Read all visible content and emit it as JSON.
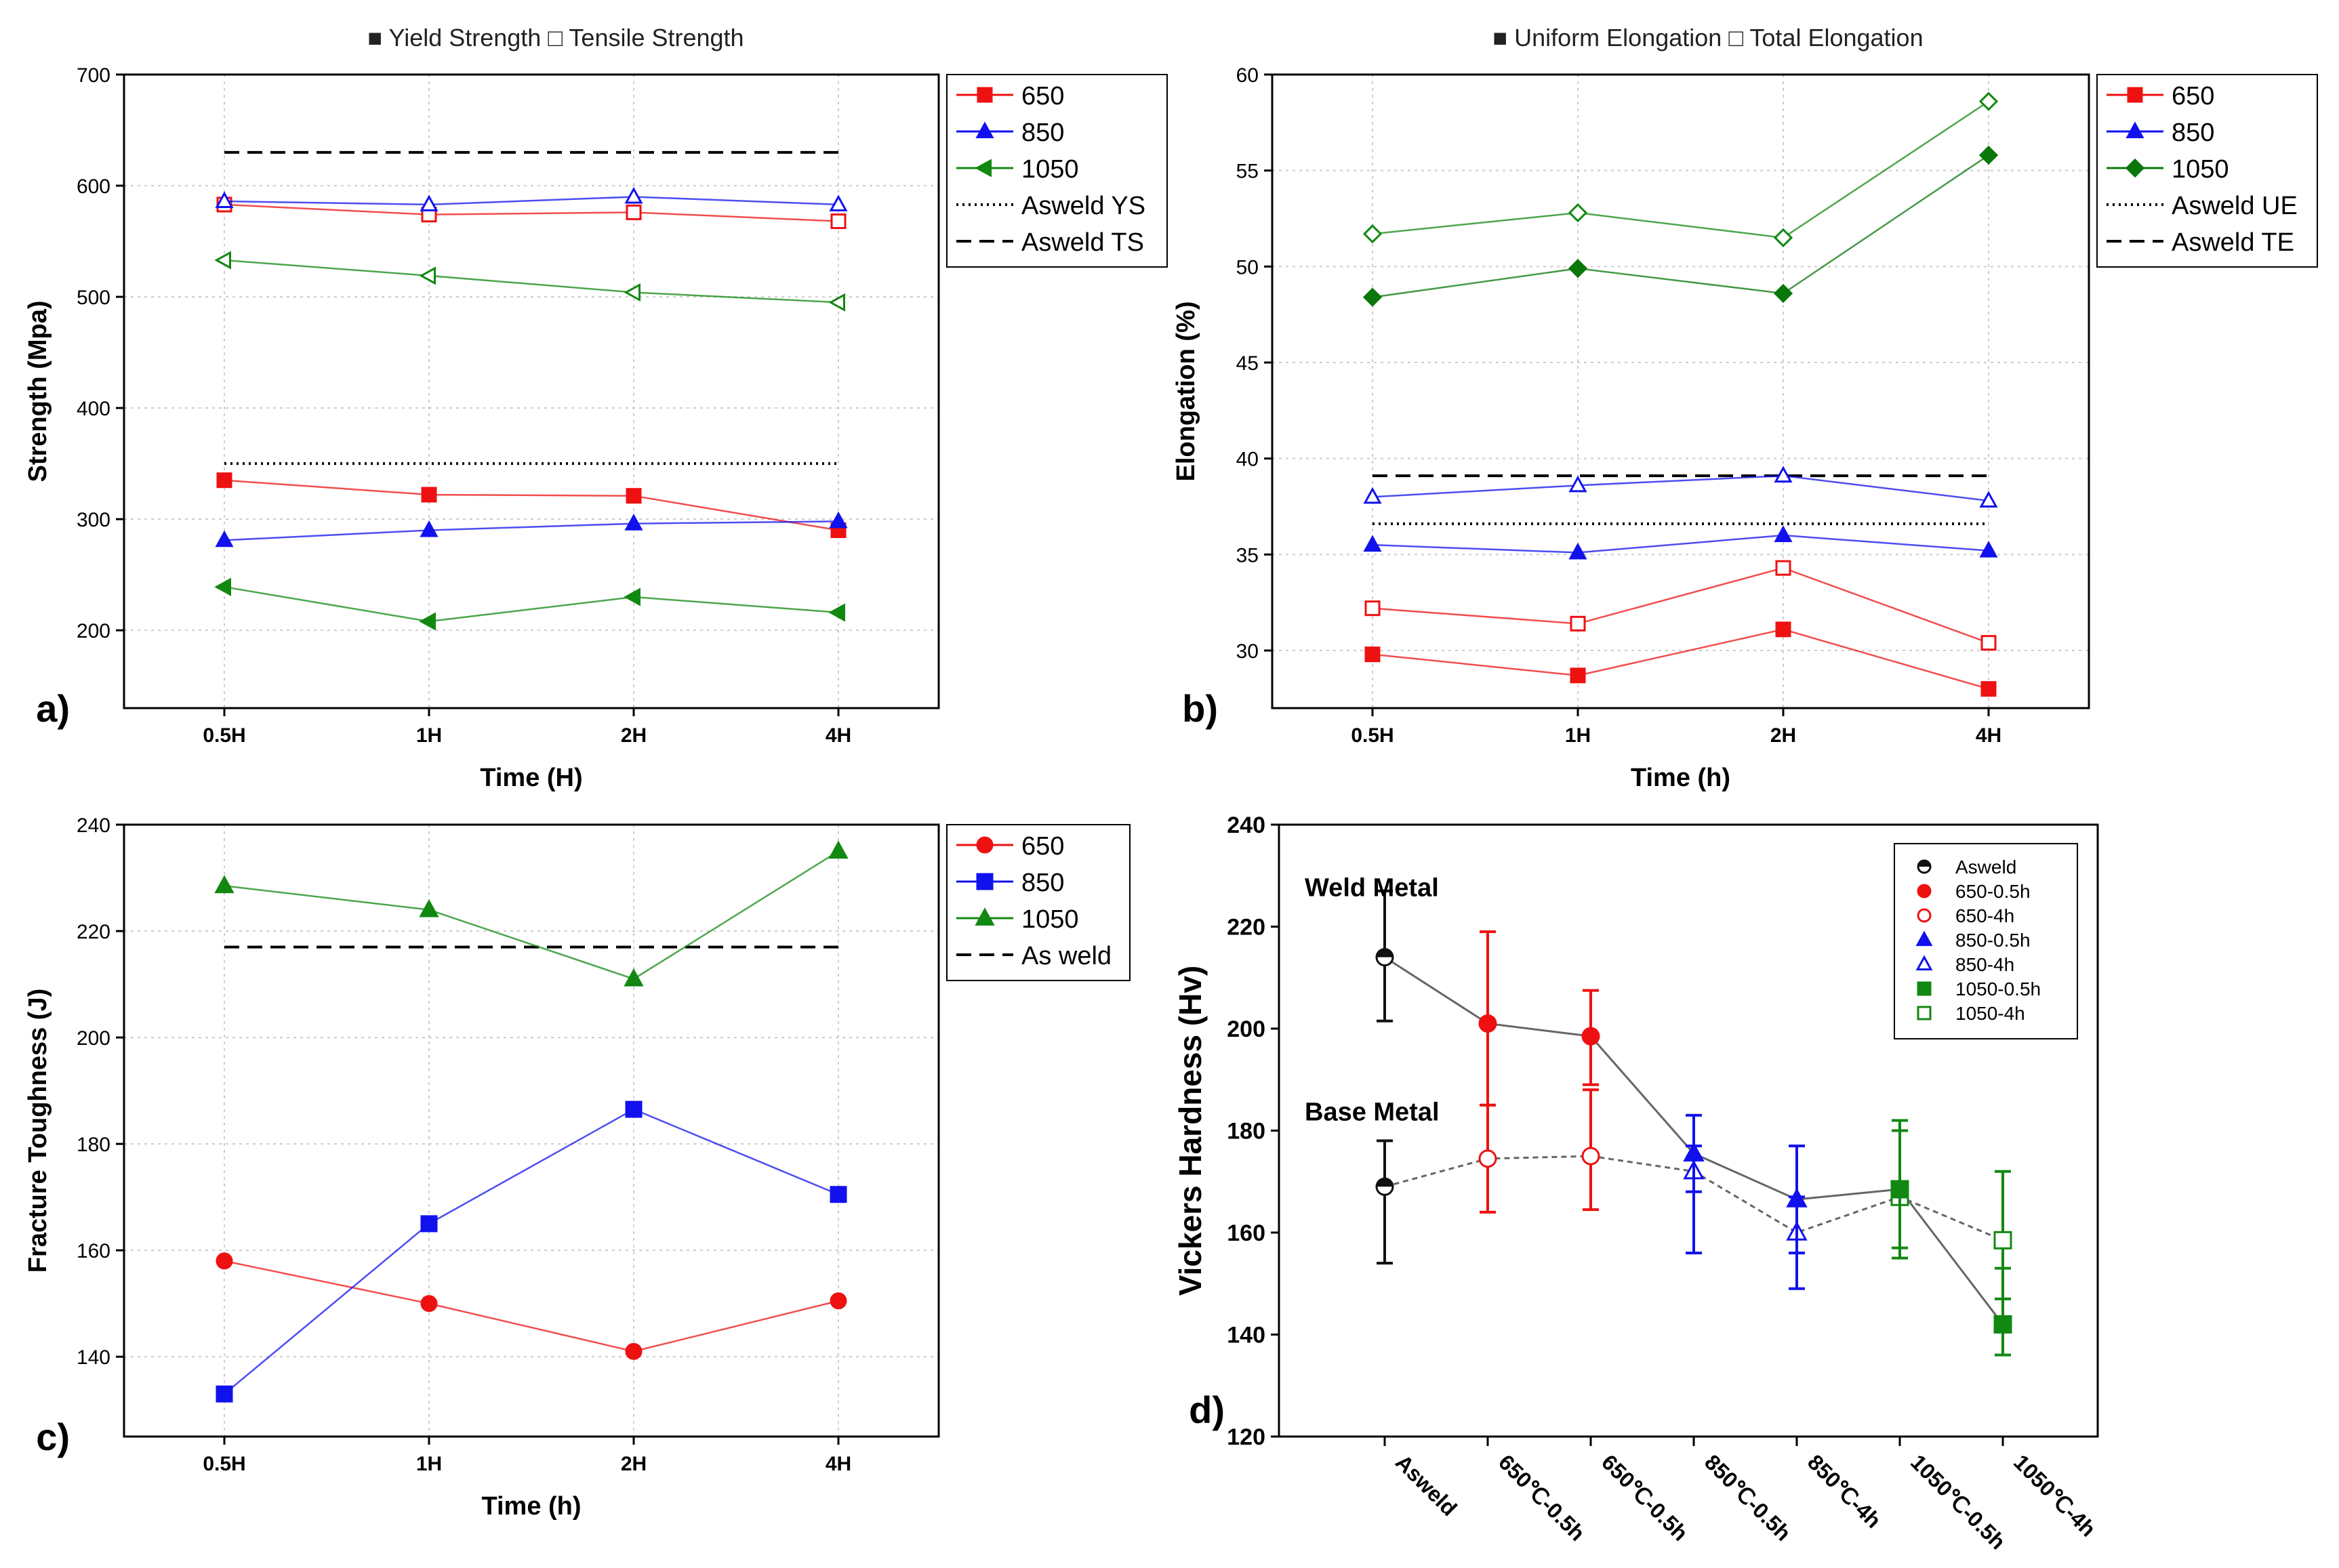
{
  "figure": {
    "panel_a_title": "■ Yield Strength □ Tensile Strength",
    "panel_b_title": "■ Uniform Elongation □ Total Elongation"
  },
  "chart_data": [
    {
      "panel": "a)",
      "type": "line",
      "xlabel": "Time (H)",
      "ylabel": "Strength (Mpa)",
      "categories": [
        "0.5H",
        "1H",
        "2H",
        "4H"
      ],
      "ylim": [
        130,
        700
      ],
      "yticks": [
        200,
        300,
        400,
        500,
        600,
        700
      ],
      "grid": true,
      "legend": [
        "650",
        "850",
        "1050",
        "Asweld YS",
        "Asweld TS"
      ],
      "legend_position": "top-right",
      "series": [
        {
          "name": "650",
          "color": "#ee1111",
          "marker": "square",
          "fill": "filled",
          "legend": true,
          "values": [
            335,
            322,
            321,
            290
          ]
        },
        {
          "name": "850",
          "color": "#1111ee",
          "marker": "triangle-up",
          "fill": "filled",
          "legend": true,
          "values": [
            281,
            290,
            296,
            298
          ]
        },
        {
          "name": "1050",
          "color": "#118811",
          "marker": "triangle-left",
          "fill": "filled",
          "legend": true,
          "values": [
            239,
            208,
            230,
            216
          ]
        },
        {
          "name": "650 TS",
          "color": "#ee1111",
          "marker": "square",
          "fill": "open",
          "legend": false,
          "values": [
            583,
            574,
            576,
            568
          ]
        },
        {
          "name": "850 TS",
          "color": "#1111ee",
          "marker": "triangle-up",
          "fill": "open",
          "legend": false,
          "values": [
            586,
            583,
            590,
            583
          ]
        },
        {
          "name": "1050 TS",
          "color": "#118811",
          "marker": "triangle-left",
          "fill": "open",
          "legend": false,
          "values": [
            533,
            519,
            504,
            495
          ]
        }
      ],
      "reference_lines": [
        {
          "name": "Asweld YS",
          "style": "dotted",
          "value": 350
        },
        {
          "name": "Asweld TS",
          "style": "dashed",
          "value": 630
        }
      ]
    },
    {
      "panel": "b)",
      "type": "line",
      "xlabel": "Time (h)",
      "ylabel": "Elongation (%)",
      "categories": [
        "0.5H",
        "1H",
        "2H",
        "4H"
      ],
      "ylim": [
        27,
        60
      ],
      "yticks": [
        30,
        35,
        40,
        45,
        50,
        55,
        60
      ],
      "grid": true,
      "legend": [
        "650",
        "850",
        "1050",
        "Asweld UE",
        "Asweld TE"
      ],
      "legend_position": "top-right",
      "series": [
        {
          "name": "650",
          "color": "#ee1111",
          "marker": "square",
          "fill": "filled",
          "legend": true,
          "values": [
            29.8,
            28.7,
            31.1,
            28.0
          ]
        },
        {
          "name": "850",
          "color": "#1111ee",
          "marker": "triangle-up",
          "fill": "filled",
          "legend": true,
          "values": [
            35.5,
            35.1,
            36.0,
            35.2
          ]
        },
        {
          "name": "1050",
          "color": "#0a770a",
          "marker": "diamond",
          "fill": "filled",
          "legend": true,
          "values": [
            48.4,
            49.9,
            48.6,
            55.8
          ]
        },
        {
          "name": "650 TE",
          "color": "#ee1111",
          "marker": "square",
          "fill": "open",
          "legend": false,
          "values": [
            32.2,
            31.4,
            34.3,
            30.4
          ]
        },
        {
          "name": "850 TE",
          "color": "#1111ee",
          "marker": "triangle-up",
          "fill": "open",
          "legend": false,
          "values": [
            38.0,
            38.6,
            39.1,
            37.8
          ]
        },
        {
          "name": "1050 TE",
          "color": "#118811",
          "marker": "diamond",
          "fill": "open",
          "legend": false,
          "values": [
            51.7,
            52.8,
            51.5,
            58.6
          ]
        }
      ],
      "reference_lines": [
        {
          "name": "Asweld UE",
          "style": "dotted",
          "value": 36.6
        },
        {
          "name": "Asweld TE",
          "style": "dashed",
          "value": 39.1
        }
      ]
    },
    {
      "panel": "c)",
      "type": "line",
      "xlabel": "Time (h)",
      "ylabel": "Fracture Toughness (J)",
      "categories": [
        "0.5H",
        "1H",
        "2H",
        "4H"
      ],
      "ylim": [
        125,
        240
      ],
      "yticks": [
        140,
        160,
        180,
        200,
        220,
        240
      ],
      "grid": true,
      "legend": [
        "650",
        "850",
        "1050",
        "As weld"
      ],
      "legend_position": "top-right",
      "series": [
        {
          "name": "650",
          "color": "#ee1111",
          "marker": "circle",
          "fill": "filled",
          "legend": true,
          "values": [
            158,
            150,
            141,
            150.5
          ]
        },
        {
          "name": "850",
          "color": "#1111ee",
          "marker": "square",
          "fill": "filled",
          "legend": true,
          "values": [
            133,
            165,
            186.5,
            170.5
          ]
        },
        {
          "name": "1050",
          "color": "#118811",
          "marker": "triangle-up",
          "fill": "filled",
          "legend": true,
          "values": [
            228.5,
            224,
            211,
            235
          ]
        }
      ],
      "reference_lines": [
        {
          "name": "As weld",
          "style": "dashed",
          "value": 217
        }
      ]
    },
    {
      "panel": "d)",
      "type": "scatter",
      "xlabel": "",
      "ylabel": "Vickers Hardness (Hv)",
      "categories": [
        "Asweld",
        "650℃-0.5h",
        "650℃-0.5h",
        "850℃-0.5h",
        "850℃-4h",
        "1050℃-0.5h",
        "1050℃-4h"
      ],
      "ylim": [
        120,
        240
      ],
      "yticks": [
        120,
        140,
        160,
        180,
        200,
        220,
        240
      ],
      "grid": false,
      "legend_position": "top-right",
      "annotations": [
        "Weld Metal",
        "Base Metal"
      ],
      "legend": [
        {
          "name": "Asweld",
          "color": "#111111",
          "marker": "half-circle"
        },
        {
          "name": "650-0.5h",
          "color": "#ee1111",
          "marker": "circle",
          "fill": "filled"
        },
        {
          "name": "650-4h",
          "color": "#ee1111",
          "marker": "circle",
          "fill": "open"
        },
        {
          "name": "850-0.5h",
          "color": "#1111ee",
          "marker": "triangle-up",
          "fill": "filled"
        },
        {
          "name": "850-4h",
          "color": "#1111ee",
          "marker": "triangle-up",
          "fill": "open"
        },
        {
          "name": "1050-0.5h",
          "color": "#118811",
          "marker": "square",
          "fill": "filled"
        },
        {
          "name": "1050-4h",
          "color": "#118811",
          "marker": "square",
          "fill": "open"
        }
      ],
      "weld_metal": [
        {
          "category": "Asweld",
          "value": 214,
          "err_low": 201.5,
          "err_high": 227,
          "color": "#111111",
          "marker": "half-circle"
        },
        {
          "category": "650℃-0.5h",
          "value": 201,
          "err_low": 185,
          "err_high": 219,
          "color": "#ee1111",
          "marker": "circle"
        },
        {
          "category": "650℃-0.5h",
          "value": 198.5,
          "err_low": 189,
          "err_high": 207.5,
          "color": "#ee1111",
          "marker": "circle"
        },
        {
          "category": "850℃-0.5h",
          "value": 175.5,
          "err_low": 168,
          "err_high": 183,
          "color": "#1111ee",
          "marker": "triangle-up"
        },
        {
          "category": "850℃-4h",
          "value": 166.5,
          "err_low": 156,
          "err_high": 177,
          "color": "#1111ee",
          "marker": "triangle-up"
        },
        {
          "category": "1050℃-0.5h",
          "value": 168.5,
          "err_low": 157,
          "err_high": 180,
          "color": "#118811",
          "marker": "square"
        },
        {
          "category": "1050℃-4h",
          "value": 142,
          "err_low": 136,
          "err_high": 153,
          "color": "#118811",
          "marker": "square"
        }
      ],
      "base_metal": [
        {
          "category": "Asweld",
          "value": 169,
          "err_low": 154,
          "err_high": 178,
          "color": "#111111",
          "marker": "half-circle"
        },
        {
          "category": "650℃-0.5h",
          "value": 174.5,
          "err_low": 164,
          "err_high": 185,
          "color": "#ee1111",
          "marker": "circle"
        },
        {
          "category": "650℃-0.5h",
          "value": 175,
          "err_low": 164.5,
          "err_high": 188,
          "color": "#ee1111",
          "marker": "circle"
        },
        {
          "category": "850℃-0.5h",
          "value": 172,
          "err_low": 156,
          "err_high": 177,
          "color": "#1111ee",
          "marker": "triangle-up"
        },
        {
          "category": "850℃-4h",
          "value": 160,
          "err_low": 149,
          "err_high": 167,
          "color": "#1111ee",
          "marker": "triangle-up"
        },
        {
          "category": "1050℃-0.5h",
          "value": 167,
          "err_low": 155,
          "err_high": 182,
          "color": "#118811",
          "marker": "square"
        },
        {
          "category": "1050℃-4h",
          "value": 158.5,
          "err_low": 147,
          "err_high": 172,
          "color": "#118811",
          "marker": "square"
        }
      ]
    }
  ]
}
